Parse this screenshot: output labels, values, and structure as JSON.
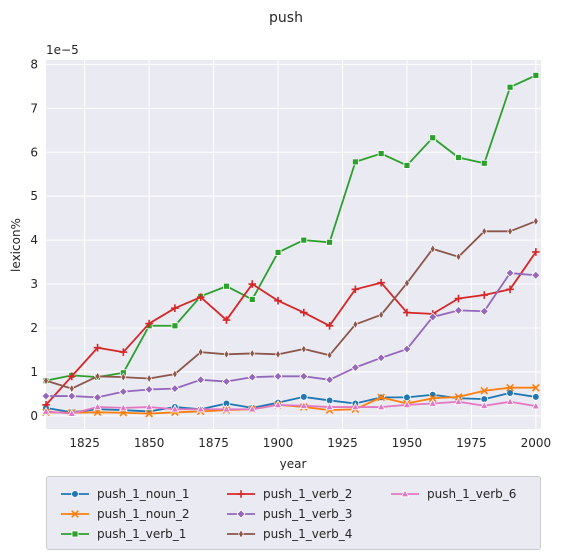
{
  "chart_data": {
    "type": "line",
    "title": "push",
    "xlabel": "year",
    "ylabel": "lexicon%",
    "y_offset_label": "1e−5",
    "xlim": [
      1810,
      2002
    ],
    "ylim": [
      -0.3,
      8.1
    ],
    "x_ticks": [
      1825,
      1850,
      1875,
      1900,
      1925,
      1950,
      1975,
      2000
    ],
    "y_ticks": [
      0,
      1,
      2,
      3,
      4,
      5,
      6,
      7,
      8
    ],
    "grid": true,
    "legend_position": "below",
    "x": [
      1810,
      1820,
      1830,
      1840,
      1850,
      1860,
      1870,
      1880,
      1890,
      1900,
      1910,
      1920,
      1930,
      1940,
      1950,
      1960,
      1970,
      1980,
      1990,
      2000
    ],
    "series": [
      {
        "name": "push_1_noun_1",
        "color": "#1f77b4",
        "marker": "circle",
        "values": [
          0.18,
          0.08,
          0.15,
          0.13,
          0.1,
          0.2,
          0.15,
          0.28,
          0.18,
          0.3,
          0.43,
          0.35,
          0.28,
          0.42,
          0.42,
          0.48,
          0.4,
          0.38,
          0.52,
          0.43
        ]
      },
      {
        "name": "push_1_noun_2",
        "color": "#ff7f0e",
        "marker": "x",
        "values": [
          0.08,
          0.07,
          0.08,
          0.07,
          0.05,
          0.08,
          0.1,
          0.13,
          0.15,
          0.25,
          0.2,
          0.13,
          0.15,
          0.42,
          0.28,
          0.4,
          0.43,
          0.57,
          0.64,
          0.64
        ]
      },
      {
        "name": "push_1_verb_1",
        "color": "#2ca02c",
        "marker": "square",
        "values": [
          0.8,
          0.92,
          0.88,
          0.98,
          2.05,
          2.05,
          2.72,
          2.95,
          2.65,
          3.72,
          4.0,
          3.95,
          5.78,
          5.97,
          5.7,
          6.33,
          5.88,
          5.75,
          7.48,
          7.75
        ]
      },
      {
        "name": "push_1_verb_2",
        "color": "#d62728",
        "marker": "plus",
        "values": [
          0.25,
          0.9,
          1.55,
          1.45,
          2.1,
          2.45,
          2.7,
          2.18,
          3.0,
          2.62,
          2.35,
          2.05,
          2.88,
          3.03,
          2.35,
          2.32,
          2.67,
          2.75,
          2.88,
          3.73
        ]
      },
      {
        "name": "push_1_verb_3",
        "color": "#9467bd",
        "marker": "diamond",
        "values": [
          0.45,
          0.45,
          0.42,
          0.55,
          0.6,
          0.62,
          0.82,
          0.78,
          0.88,
          0.9,
          0.9,
          0.82,
          1.1,
          1.32,
          1.52,
          2.25,
          2.4,
          2.38,
          3.25,
          3.2
        ]
      },
      {
        "name": "push_1_verb_4",
        "color": "#8c564b",
        "marker": "thin_diamond",
        "values": [
          0.8,
          0.62,
          0.9,
          0.88,
          0.85,
          0.95,
          1.45,
          1.4,
          1.42,
          1.4,
          1.52,
          1.38,
          2.08,
          2.3,
          3.02,
          3.8,
          3.62,
          4.2,
          4.2,
          4.43
        ]
      },
      {
        "name": "push_1_verb_6",
        "color": "#e377c2",
        "marker": "triangle",
        "values": [
          0.1,
          0.05,
          0.2,
          0.18,
          0.2,
          0.15,
          0.15,
          0.15,
          0.15,
          0.25,
          0.23,
          0.2,
          0.2,
          0.2,
          0.25,
          0.28,
          0.32,
          0.23,
          0.32,
          0.22
        ]
      }
    ]
  }
}
